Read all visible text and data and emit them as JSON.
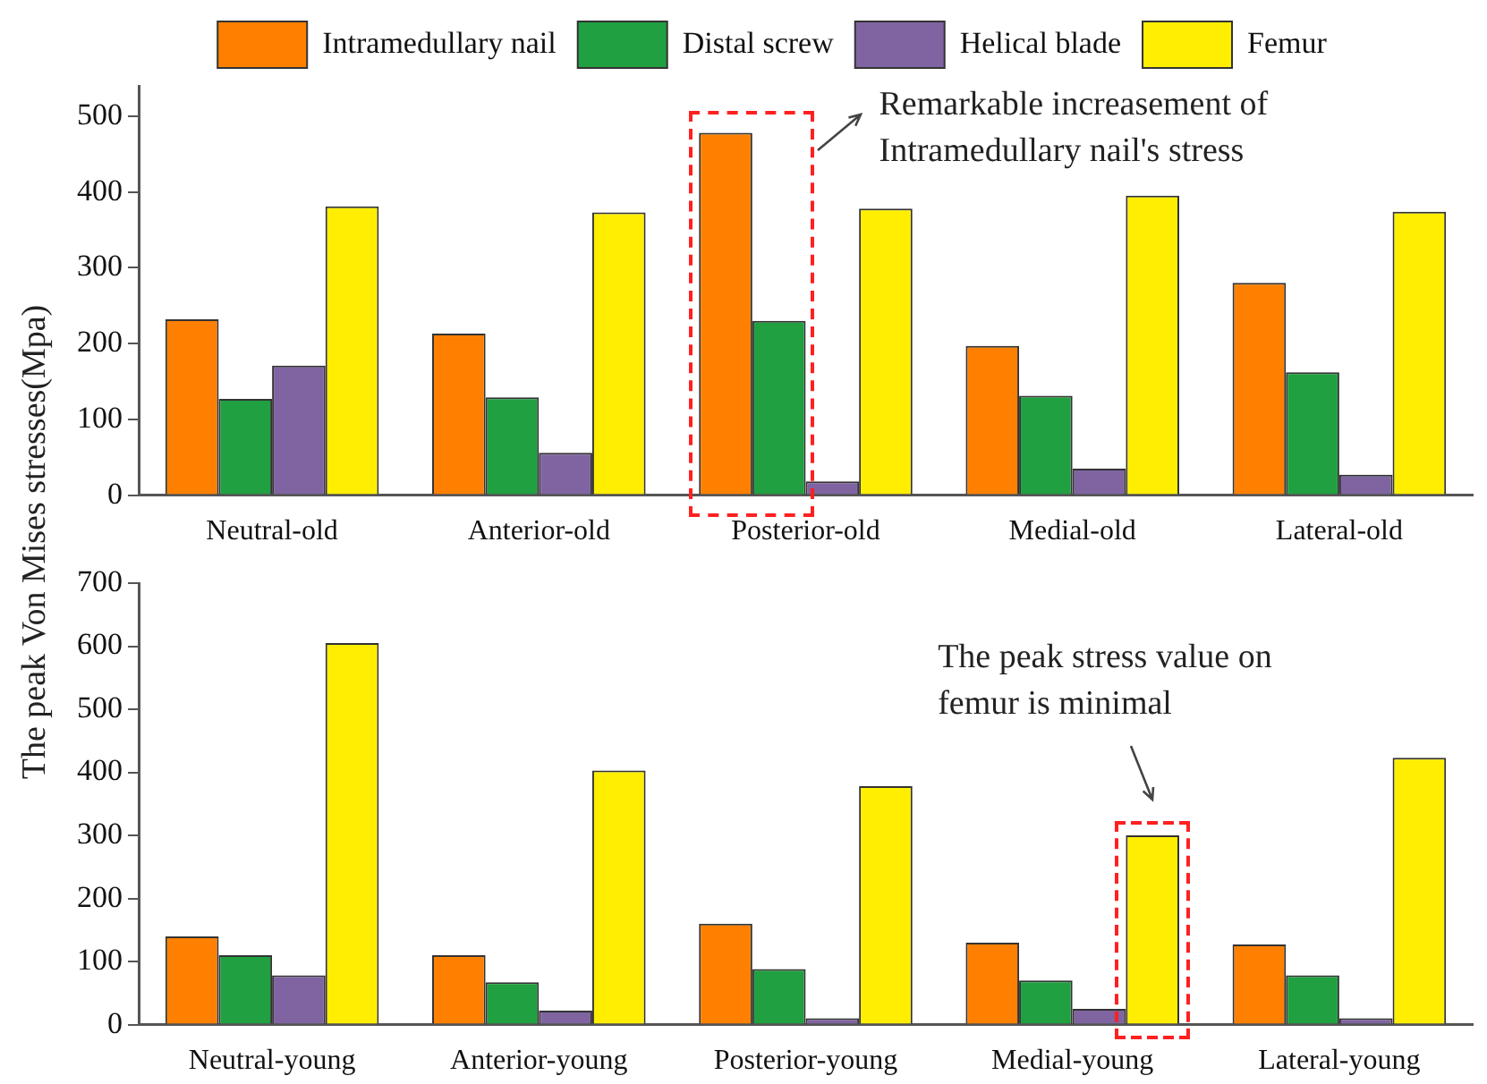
{
  "chart_data": [
    {
      "type": "bar",
      "ylabel": "The peak Von Mises stresses(Mpa)",
      "categories": [
        "Neutral-old",
        "Anterior-old",
        "Posterior-old",
        "Medial-old",
        "Lateral-old"
      ],
      "series": [
        {
          "name": "Intramedullary nail",
          "color": "#ff8000",
          "values": [
            232,
            213,
            478,
            197,
            280
          ]
        },
        {
          "name": "Distal screw",
          "color": "#20a040",
          "values": [
            127,
            129,
            230,
            131,
            162
          ]
        },
        {
          "name": "Helical blade",
          "color": "#8064a2",
          "values": [
            171,
            56,
            18,
            35,
            27
          ]
        },
        {
          "name": "Femur",
          "color": "#ffee00",
          "values": [
            381,
            373,
            378,
            395,
            374
          ]
        }
      ],
      "ylim": [
        0,
        540
      ],
      "yticks": [
        0,
        100,
        200,
        300,
        400,
        500
      ],
      "grid": false,
      "legend": "top",
      "annotations": [
        "Remarkable increasement of Intramedullary nail's stress"
      ]
    },
    {
      "type": "bar",
      "categories": [
        "Neutral-young",
        "Anterior-young",
        "Posterior-young",
        "Medial-young",
        "Lateral-young"
      ],
      "series": [
        {
          "color": "#ff8000",
          "values": [
            140,
            110,
            160,
            130,
            127
          ]
        },
        {
          "color": "#20a040",
          "values": [
            110,
            67,
            88,
            70,
            78
          ]
        },
        {
          "color": "#8064a2",
          "values": [
            78,
            22,
            10,
            25,
            10
          ]
        },
        {
          "color": "#ffee00",
          "values": [
            605,
            403,
            378,
            300,
            423
          ]
        }
      ],
      "ylim": [
        0,
        700
      ],
      "yticks": [
        0,
        100,
        200,
        300,
        400,
        500,
        600,
        700
      ],
      "grid": false,
      "legend": false,
      "annotations": [
        "The peak stress value on femur is minimal"
      ]
    }
  ]
}
